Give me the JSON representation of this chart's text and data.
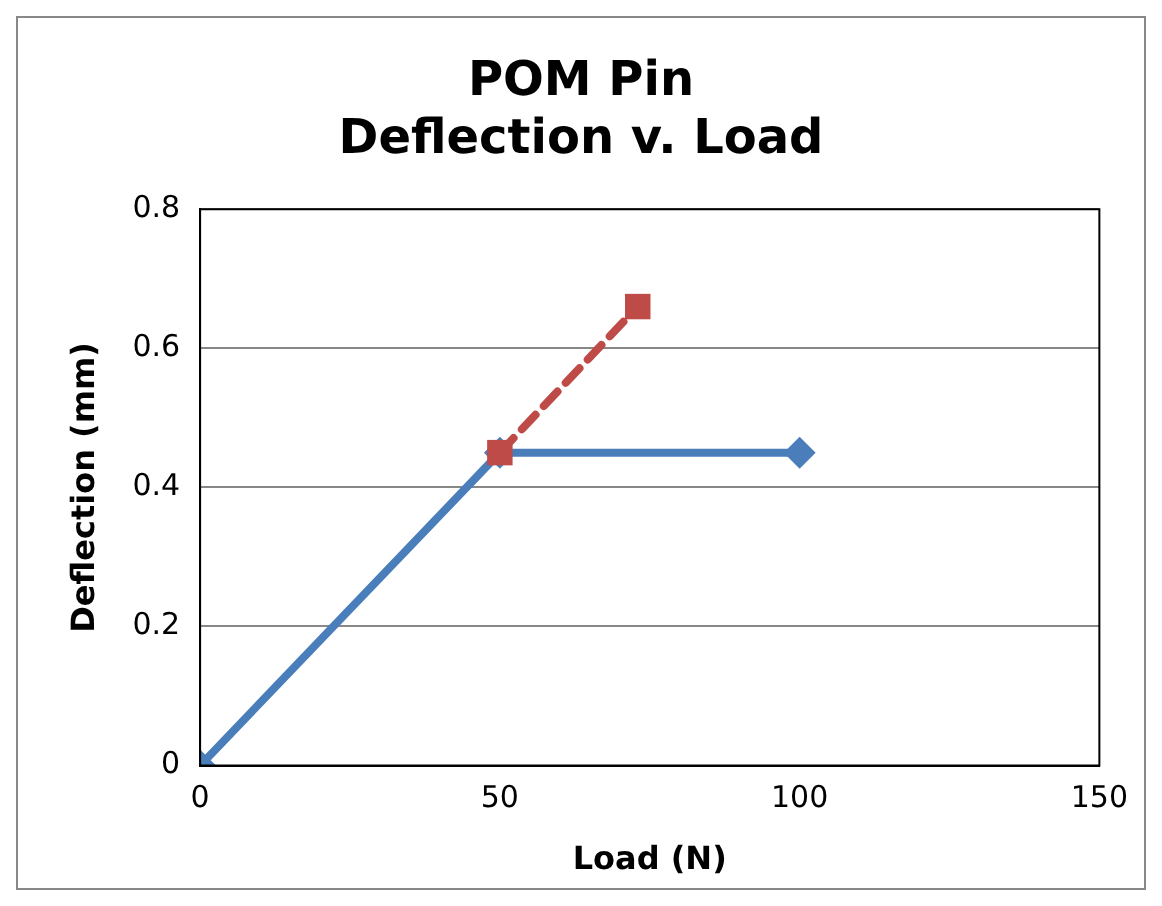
{
  "chart_data": {
    "type": "line",
    "title": "POM Pin\nDeflection v. Load",
    "xlabel": "Load (N)",
    "ylabel": "Deflection (mm)",
    "xlim": [
      0,
      150
    ],
    "xticks": [
      0,
      50,
      100,
      150
    ],
    "ylim": [
      0,
      0.8
    ],
    "yticks": [
      0,
      0.2,
      0.4,
      0.6,
      0.8
    ],
    "grid": "y",
    "legend": false,
    "series": [
      {
        "color": "#4a7ebb",
        "x": [
          0,
          50,
          100
        ],
        "values": [
          0,
          0.45,
          0.45
        ],
        "marker": "diamond",
        "line_style": "solid"
      },
      {
        "color": "#be4b48",
        "x": [
          50,
          73
        ],
        "values": [
          0.45,
          0.66
        ],
        "marker": "square",
        "line_style": "dashed"
      }
    ]
  }
}
